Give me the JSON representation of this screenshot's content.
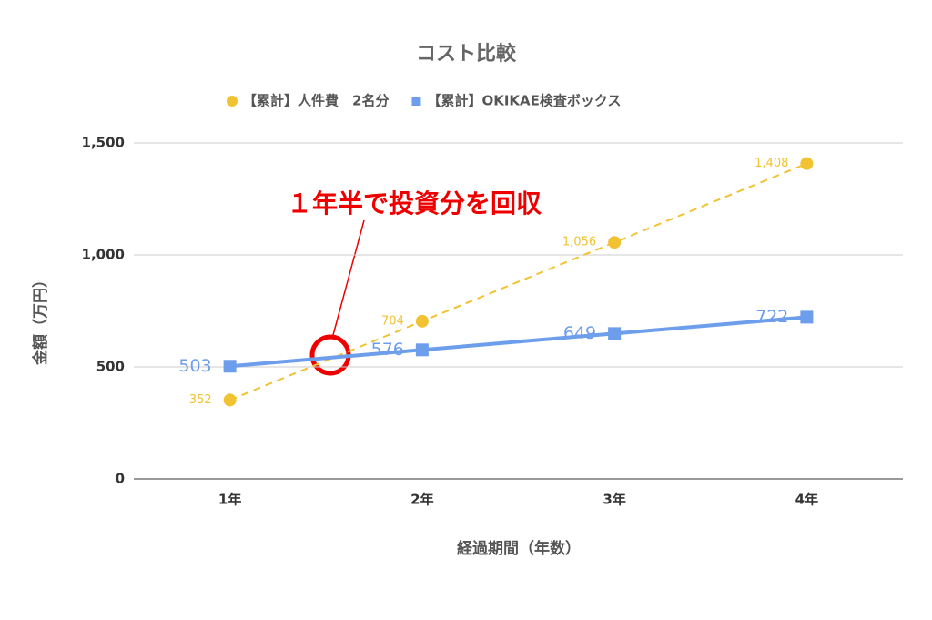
{
  "chart_data": {
    "type": "line",
    "title": "コスト比較",
    "x_label": "経過期間（年数）",
    "y_label": "金額（万円）",
    "categories": [
      "1年",
      "2年",
      "3年",
      "4年"
    ],
    "series": [
      {
        "name": "【累計】人件費　2名分",
        "color": "#f1c232",
        "dashed": true,
        "marker": "circle",
        "values": [
          352,
          704,
          1056,
          1408
        ],
        "value_labels": [
          "352",
          "704",
          "1,056",
          "1,408"
        ]
      },
      {
        "name": "【累計】OKIKAE検査ボックス",
        "color": "#6d9eeb",
        "dashed": false,
        "marker": "square",
        "values": [
          503,
          576,
          649,
          722
        ]
      }
    ],
    "ylim": [
      0,
      1500
    ],
    "yticks": [
      0,
      500,
      {
        "value": 1000,
        "label": "1,000"
      },
      {
        "value": 1500,
        "label": "1,500"
      }
    ],
    "grid": true,
    "legend": "top",
    "annotation": "１年半で投資分を回収"
  }
}
